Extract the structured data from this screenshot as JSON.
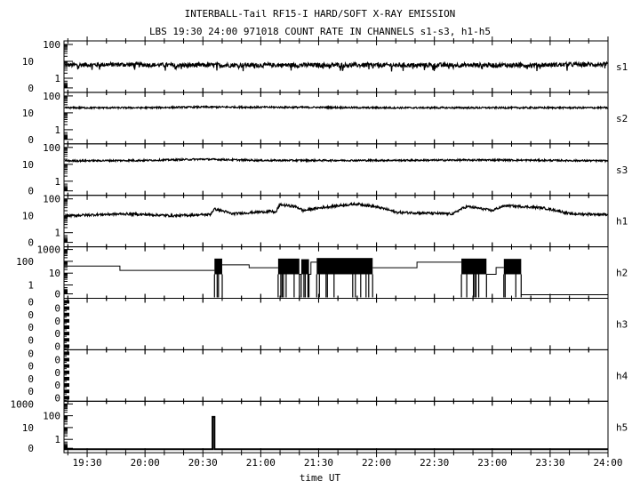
{
  "chart_data": {
    "type": "line",
    "title": "INTERBALL-Tail RF15-I HARD/SOFT X-RAY EMISSION",
    "subtitle": "LBS 19:30 24:00 971018  COUNT RATE IN CHANNELS s1-s3, h1-h5",
    "xlabel": "time UT",
    "xlim": [
      "19:18",
      "24:00"
    ],
    "xticks": [
      "19:30",
      "20:00",
      "20:30",
      "21:00",
      "21:30",
      "22:00",
      "22:30",
      "23:00",
      "23:30",
      "24:00"
    ],
    "yscale": "log",
    "grid": false,
    "panels": [
      {
        "name": "s1",
        "yticks": [
          "100",
          "10",
          "1",
          "0"
        ],
        "style": "noisy",
        "points": [
          [
            "19:18",
            6
          ],
          [
            "19:45",
            6.5
          ],
          [
            "20:15",
            6
          ],
          [
            "20:45",
            6
          ],
          [
            "21:15",
            6
          ],
          [
            "21:45",
            6
          ],
          [
            "22:15",
            6
          ],
          [
            "22:45",
            6
          ],
          [
            "23:15",
            6
          ],
          [
            "23:45",
            6.5
          ],
          [
            "24:00",
            6.5
          ]
        ]
      },
      {
        "name": "s2",
        "yticks": [
          "100",
          "10",
          "1",
          "0"
        ],
        "style": "noisy",
        "points": [
          [
            "19:18",
            20
          ],
          [
            "20:00",
            20
          ],
          [
            "20:30",
            22
          ],
          [
            "21:30",
            21
          ],
          [
            "22:00",
            20
          ],
          [
            "23:00",
            20
          ],
          [
            "24:00",
            20
          ]
        ]
      },
      {
        "name": "s3",
        "yticks": [
          "100",
          "10",
          "1",
          "0"
        ],
        "style": "noisy",
        "points": [
          [
            "19:18",
            16
          ],
          [
            "20:00",
            17
          ],
          [
            "20:30",
            20
          ],
          [
            "21:00",
            17
          ],
          [
            "22:00",
            17
          ],
          [
            "23:00",
            18
          ],
          [
            "24:00",
            16
          ]
        ]
      },
      {
        "name": "h1",
        "yticks": [
          "100",
          "10",
          "1",
          "0"
        ],
        "style": "noisy",
        "points": [
          [
            "19:18",
            10
          ],
          [
            "19:50",
            13
          ],
          [
            "20:15",
            10
          ],
          [
            "20:34",
            12
          ],
          [
            "20:36",
            25
          ],
          [
            "20:45",
            13
          ],
          [
            "21:05",
            18
          ],
          [
            "21:08",
            16
          ],
          [
            "21:10",
            45
          ],
          [
            "21:18",
            35
          ],
          [
            "21:22",
            20
          ],
          [
            "21:50",
            50
          ],
          [
            "22:10",
            16
          ],
          [
            "22:40",
            13
          ],
          [
            "22:47",
            35
          ],
          [
            "23:00",
            20
          ],
          [
            "23:07",
            40
          ],
          [
            "23:25",
            30
          ],
          [
            "23:40",
            13
          ],
          [
            "24:00",
            12
          ]
        ]
      },
      {
        "name": "h2",
        "yticks": [
          "1000",
          "100",
          "10",
          "1",
          "0"
        ],
        "style": "steps",
        "steps": [
          [
            "19:18",
            40
          ],
          [
            "19:47",
            17
          ],
          [
            "20:36",
            null
          ],
          [
            "20:40",
            50
          ],
          [
            "20:54",
            29
          ],
          [
            "21:09",
            null
          ],
          [
            "21:20",
            8
          ],
          [
            "21:21",
            null
          ],
          [
            "21:25",
            8
          ],
          [
            "21:26",
            84
          ],
          [
            "21:29",
            null
          ],
          [
            "21:58",
            29
          ],
          [
            "22:21",
            84
          ],
          [
            "22:44",
            null
          ],
          [
            "22:57",
            8
          ],
          [
            "23:02",
            30
          ],
          [
            "23:06",
            null
          ],
          [
            "23:15",
            0
          ],
          [
            "24:00",
            0
          ]
        ],
        "bursts": [
          [
            "20:36",
            "20:40",
            170
          ],
          [
            "21:09",
            "21:20",
            170
          ],
          [
            "21:21",
            "21:25",
            150
          ],
          [
            "21:29",
            "21:58",
            190
          ],
          [
            "22:44",
            "22:57",
            170
          ],
          [
            "23:06",
            "23:15",
            160
          ]
        ]
      },
      {
        "name": "h3",
        "yticks": [
          "0",
          "0",
          "0",
          "0",
          "0",
          "0",
          "0",
          "0"
        ],
        "style": "empty",
        "points": []
      },
      {
        "name": "h4",
        "yticks": [
          "0",
          "0",
          "0",
          "0",
          "0",
          "0",
          "0",
          "0"
        ],
        "style": "empty",
        "points": []
      },
      {
        "name": "h5",
        "yticks": [
          "1000",
          "100",
          "10",
          "1",
          "0"
        ],
        "style": "spike",
        "points": [
          [
            "19:18",
            0
          ],
          [
            "20:35",
            0
          ],
          [
            "20:35",
            80
          ],
          [
            "20:36",
            80
          ],
          [
            "20:36",
            0
          ],
          [
            "24:00",
            0
          ]
        ]
      }
    ]
  }
}
